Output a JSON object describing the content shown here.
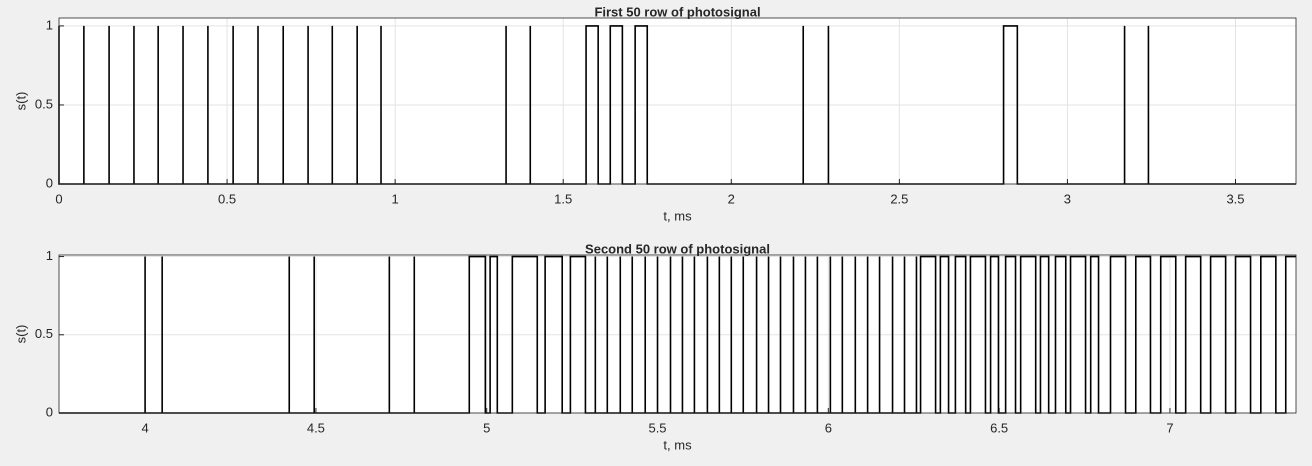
{
  "chart_data": [
    {
      "type": "line",
      "title": "First 50 row of photosignal",
      "xlabel": "t, ms",
      "ylabel": "s(t)",
      "color": "#000000",
      "grid": true,
      "xlim": [
        0,
        3.68
      ],
      "ylim": [
        0,
        1.05
      ],
      "xticks": [
        0,
        0.5,
        1,
        1.5,
        2,
        2.5,
        3,
        3.5
      ],
      "yticks": [
        0,
        0.5,
        1
      ],
      "x": [
        0,
        0,
        0.074,
        0.074,
        0.074,
        0.149,
        0.149,
        0.149,
        0.223,
        0.223,
        0.223,
        0.295,
        0.295,
        0.295,
        0.369,
        0.369,
        0.369,
        0.443,
        0.443,
        0.443,
        0.518,
        0.518,
        0.518,
        0.592,
        0.592,
        0.592,
        0.667,
        0.667,
        0.667,
        0.741,
        0.741,
        0.741,
        0.813,
        0.813,
        0.813,
        0.887,
        0.887,
        0.887,
        0.958,
        0.958,
        0.958,
        1.33,
        1.33,
        1.33,
        1.402,
        1.402,
        1.402,
        1.568,
        1.568,
        1.604,
        1.604,
        1.64,
        1.64,
        1.676,
        1.676,
        1.714,
        1.714,
        1.75,
        1.75,
        2.214,
        2.214,
        2.214,
        2.289,
        2.289,
        2.289,
        2.81,
        2.81,
        2.851,
        2.851,
        3.17,
        3.17,
        3.17,
        3.241,
        3.241,
        3.241,
        3.68
      ],
      "values": [
        1,
        0,
        0,
        1,
        0,
        0,
        1,
        0,
        0,
        1,
        0,
        0,
        1,
        0,
        0,
        1,
        0,
        0,
        1,
        0,
        0,
        1,
        0,
        0,
        1,
        0,
        0,
        1,
        0,
        0,
        1,
        0,
        0,
        1,
        0,
        0,
        1,
        0,
        0,
        1,
        0,
        0,
        1,
        0,
        0,
        1,
        0,
        0,
        1,
        1,
        0,
        0,
        1,
        1,
        0,
        0,
        1,
        1,
        0,
        0,
        1,
        0,
        0,
        1,
        0,
        0,
        1,
        1,
        0,
        0,
        1,
        0,
        0,
        1,
        0,
        0
      ]
    },
    {
      "type": "line",
      "title": "Second 50 row of photosignal",
      "xlabel": "t, ms",
      "ylabel": "s(t)",
      "color": "#000000",
      "grid": true,
      "xlim": [
        3.748,
        7.369
      ],
      "ylim": [
        0,
        1.01
      ],
      "xticks": [
        4,
        4.5,
        5,
        5.5,
        6,
        6.5,
        7
      ],
      "yticks": [
        0,
        0.5,
        1
      ],
      "x": [
        3.748,
        4,
        4,
        4,
        4.05,
        4.05,
        4.05,
        4.422,
        4.422,
        4.422,
        4.495,
        4.495,
        4.495,
        4.715,
        4.715,
        4.715,
        4.788,
        4.788,
        4.788,
        4.949,
        4.949,
        4.996,
        4.996,
        5.01,
        5.01,
        5.031,
        5.031,
        5.075,
        5.075,
        5.148,
        5.148,
        5.171,
        5.171,
        5.221,
        5.221,
        5.245,
        5.245,
        5.289,
        5.289,
        5.318,
        5.318,
        5.318,
        5.353,
        5.353,
        5.353,
        5.391,
        5.391,
        5.391,
        5.426,
        5.426,
        5.426,
        5.464,
        5.464,
        5.464,
        5.5,
        5.5,
        5.5,
        5.538,
        5.538,
        5.538,
        5.573,
        5.573,
        5.573,
        5.608,
        5.608,
        5.608,
        5.646,
        5.646,
        5.646,
        5.681,
        5.681,
        5.681,
        5.716,
        5.716,
        5.716,
        5.751,
        5.751,
        5.751,
        5.79,
        5.79,
        5.79,
        5.825,
        5.825,
        5.825,
        5.86,
        5.86,
        5.86,
        5.898,
        5.898,
        5.898,
        5.933,
        5.933,
        5.933,
        5.968,
        5.968,
        5.968,
        6.006,
        6.006,
        6.006,
        6.041,
        6.041,
        6.041,
        6.079,
        6.079,
        6.079,
        6.115,
        6.115,
        6.115,
        6.15,
        6.15,
        6.15,
        6.188,
        6.188,
        6.188,
        6.223,
        6.223,
        6.223,
        6.258,
        6.258,
        6.258,
        6.27,
        6.27,
        6.314,
        6.314,
        6.328,
        6.328,
        6.352,
        6.352,
        6.372,
        6.372,
        6.402,
        6.402,
        6.416,
        6.416,
        6.46,
        6.46,
        6.475,
        6.475,
        6.498,
        6.498,
        6.519,
        6.519,
        6.548,
        6.548,
        6.563,
        6.563,
        6.607,
        6.607,
        6.621,
        6.621,
        6.645,
        6.645,
        6.665,
        6.665,
        6.695,
        6.695,
        6.709,
        6.709,
        6.753,
        6.753,
        6.768,
        6.768,
        6.791,
        6.791,
        6.826,
        6.826,
        6.87,
        6.87,
        6.9,
        6.9,
        6.943,
        6.943,
        6.973,
        6.973,
        7.017,
        7.017,
        7.046,
        7.046,
        7.09,
        7.09,
        7.119,
        7.119,
        7.163,
        7.163,
        7.192,
        7.192,
        7.236,
        7.236,
        7.266,
        7.266,
        7.31,
        7.31,
        7.339,
        7.339,
        7.369
      ],
      "values": [
        0,
        0,
        1,
        0,
        0,
        1,
        0,
        0,
        1,
        0,
        0,
        1,
        0,
        0,
        1,
        0,
        0,
        1,
        0,
        0,
        1,
        1,
        0,
        0,
        1,
        1,
        0,
        0,
        1,
        1,
        0,
        0,
        1,
        1,
        0,
        0,
        1,
        1,
        0,
        0,
        1,
        0,
        0,
        1,
        0,
        0,
        1,
        0,
        0,
        1,
        0,
        0,
        1,
        0,
        0,
        1,
        0,
        0,
        1,
        0,
        0,
        1,
        0,
        0,
        1,
        0,
        0,
        1,
        0,
        0,
        1,
        0,
        0,
        1,
        0,
        0,
        1,
        0,
        0,
        1,
        0,
        0,
        1,
        0,
        0,
        1,
        0,
        0,
        1,
        0,
        0,
        1,
        0,
        0,
        1,
        0,
        0,
        1,
        0,
        0,
        1,
        0,
        0,
        1,
        0,
        0,
        1,
        0,
        0,
        1,
        0,
        0,
        1,
        0,
        0,
        1,
        0,
        0,
        1,
        0,
        0,
        1,
        1,
        0,
        0,
        1,
        1,
        0,
        0,
        1,
        1,
        0,
        0,
        1,
        1,
        0,
        0,
        1,
        1,
        0,
        0,
        1,
        1,
        0,
        0,
        1,
        1,
        0,
        0,
        1,
        1,
        0,
        0,
        1,
        1,
        0,
        0,
        1,
        1,
        0,
        0,
        1,
        1,
        0,
        0,
        1,
        1,
        0,
        0,
        1,
        1,
        0,
        0,
        1,
        1,
        0,
        0,
        1,
        1,
        0,
        0,
        1,
        1,
        0,
        0,
        1,
        1,
        0,
        0,
        1,
        1,
        0,
        0,
        1,
        1
      ]
    }
  ]
}
